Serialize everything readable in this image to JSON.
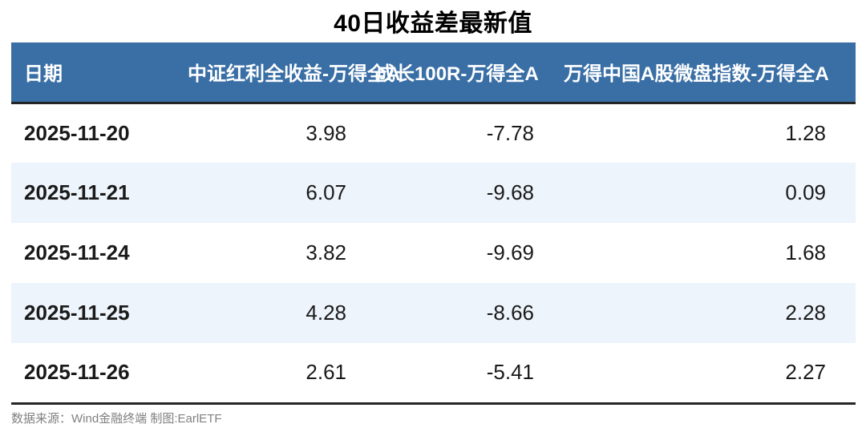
{
  "title": "40日收益差最新值",
  "table": {
    "columns": [
      "日期",
      "中证红利全收益-万得全A",
      "成长100R-万得全A",
      "万得中国A股微盘指数-万得全A"
    ],
    "rows": [
      [
        "2025-11-20",
        "3.98",
        "-7.78",
        "1.28"
      ],
      [
        "2025-11-21",
        "6.07",
        "-9.68",
        "0.09"
      ],
      [
        "2025-11-24",
        "3.82",
        "-9.69",
        "1.68"
      ],
      [
        "2025-11-25",
        "4.28",
        "-8.66",
        "2.28"
      ],
      [
        "2025-11-26",
        "2.61",
        "-5.41",
        "2.27"
      ]
    ]
  },
  "footer": {
    "source_note": "数据来源：Wind金融终端 制图:EarlETF"
  },
  "colors": {
    "header_bg": "#3A6FA6",
    "row_alt_bg": "#EDF4FB",
    "rule": "#262626",
    "text": "#1A1A1A",
    "footer_text": "#808080"
  },
  "chart_data": {
    "type": "table",
    "title": "40日收益差最新值",
    "columns": [
      "日期",
      "中证红利全收益-万得全A",
      "成长100R-万得全A",
      "万得中国A股微盘指数-万得全A"
    ],
    "rows": [
      [
        "2025-11-20",
        3.98,
        -7.78,
        1.28
      ],
      [
        "2025-11-21",
        6.07,
        -9.68,
        0.09
      ],
      [
        "2025-11-24",
        3.82,
        -9.69,
        1.68
      ],
      [
        "2025-11-25",
        4.28,
        -8.66,
        2.28
      ],
      [
        "2025-11-26",
        2.61,
        -5.41,
        2.27
      ]
    ],
    "source": "数据来源：Wind金融终端 制图:EarlETF",
    "layout_hints": {
      "header_fill": "#3A6FA6",
      "alternating_row_fill": "#EDF4FB",
      "numeric_alignment": "right",
      "date_alignment": "left",
      "grid": "off"
    }
  }
}
